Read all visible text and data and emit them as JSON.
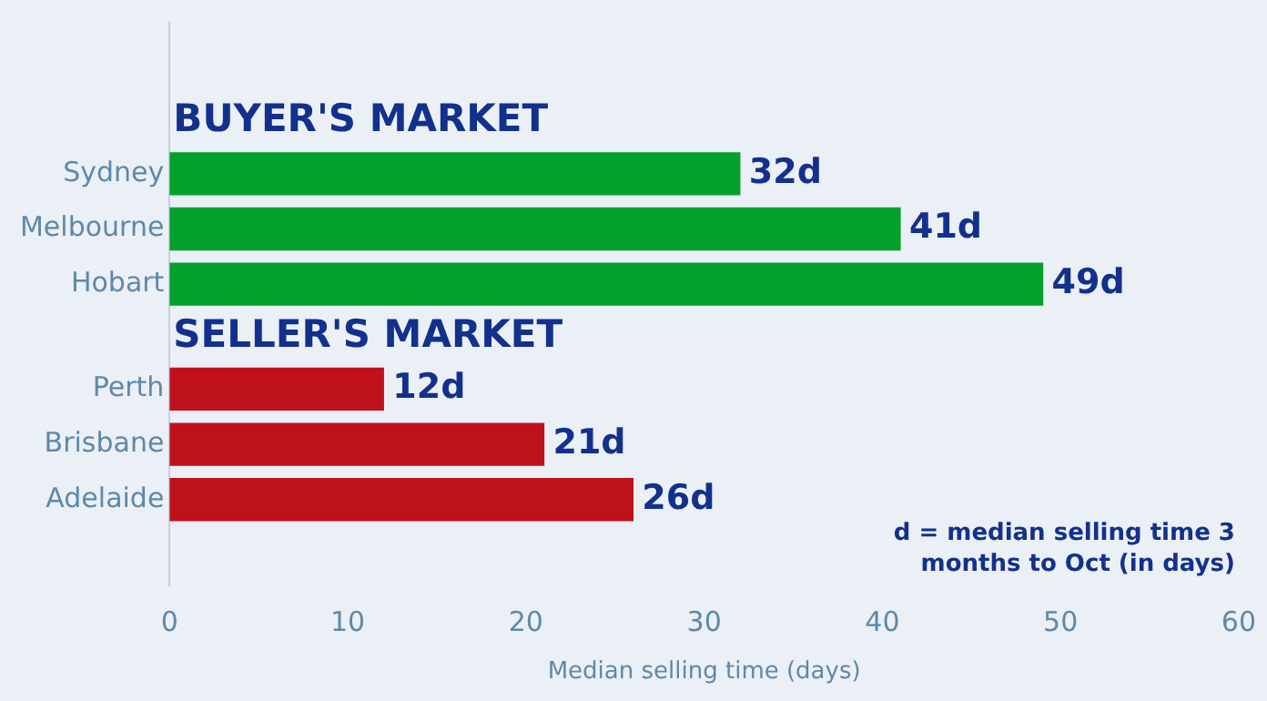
{
  "chart_data": {
    "type": "bar",
    "orientation": "horizontal",
    "categories": [
      "Sydney",
      "Melbourne",
      "Hobart",
      "Perth",
      "Brisbane",
      "Adelaide"
    ],
    "series": [
      {
        "name": "BUYER'S MARKET",
        "color": "#03a02b",
        "values": [
          32,
          41,
          49,
          null,
          null,
          null
        ],
        "value_labels": [
          "32d",
          "41d",
          "49d",
          null,
          null,
          null
        ]
      },
      {
        "name": "SELLER'S MARKET",
        "color": "#bf111c",
        "values": [
          null,
          null,
          null,
          12,
          21,
          26
        ],
        "value_labels": [
          null,
          null,
          null,
          "12d",
          "21d",
          "26d"
        ]
      }
    ],
    "xlabel": "Median selling time (days)",
    "xlim": [
      0,
      60
    ],
    "xticks": [
      0,
      10,
      20,
      30,
      40,
      50,
      60
    ],
    "grid": false,
    "legend": false,
    "annotations": [
      "d = median selling time 3 months to Oct (in days)"
    ]
  }
}
